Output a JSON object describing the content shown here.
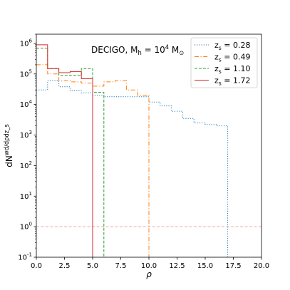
{
  "chart_data": {
    "type": "line",
    "drawstyle": "steps",
    "xlabel": "ρ",
    "ylabel": "dN^wd/dρdz_s",
    "annotation": "DECIGO, M_h = 10^4 M_⊙",
    "xlim": [
      0,
      20
    ],
    "ylim": [
      0.1,
      2000000
    ],
    "yscale": "log",
    "x_ticks": [
      0,
      2.5,
      5,
      7.5,
      10,
      12.5,
      15,
      17.5,
      20
    ],
    "x_tick_labels": [
      "0.0",
      "2.5",
      "5.0",
      "7.5",
      "10.0",
      "12.5",
      "15.0",
      "17.5",
      "20.0"
    ],
    "y_ticks": [
      0.1,
      1,
      10,
      100,
      1000,
      10000,
      100000,
      1000000
    ],
    "y_tick_labels": [
      "10^-1",
      "10^0",
      "10^1",
      "10^2",
      "10^3",
      "10^4",
      "10^5",
      "10^6"
    ],
    "reference_line": {
      "y": 1,
      "color": "#f4a6a6",
      "style": "dashed"
    },
    "legend": {
      "placement": "top-right"
    },
    "series": [
      {
        "name": "z_s = 0.28",
        "color": "#1f77b4",
        "linestyle": "dotted",
        "bin_edges": [
          0,
          1,
          2,
          3,
          4,
          5,
          6,
          7,
          8,
          9,
          10,
          11,
          12,
          13,
          14,
          15,
          16,
          17
        ],
        "values": [
          30000,
          60000,
          38000,
          28000,
          24000,
          20000,
          18000,
          18000,
          18000,
          18000,
          12000,
          9000,
          6000,
          3500,
          2500,
          2200,
          2000
        ]
      },
      {
        "name": "z_s = 0.49",
        "color": "#ff7f0e",
        "linestyle": "dashdot",
        "bin_edges": [
          0,
          1,
          2,
          3,
          4,
          5,
          6,
          7,
          8,
          9,
          10
        ],
        "values": [
          200000,
          100000,
          60000,
          55000,
          50000,
          40000,
          55000,
          60000,
          30000,
          20000
        ]
      },
      {
        "name": "z_s = 1.10",
        "color": "#2ca02c",
        "linestyle": "dashed",
        "bin_edges": [
          0,
          1,
          2,
          3,
          4,
          5,
          6
        ],
        "values": [
          700000,
          150000,
          90000,
          90000,
          150000,
          25000
        ]
      },
      {
        "name": "z_s = 1.72",
        "color": "#d62728",
        "linestyle": "solid",
        "bin_edges": [
          0,
          1,
          2,
          3,
          4,
          5
        ],
        "values": [
          900000,
          150000,
          110000,
          120000,
          70000
        ]
      }
    ]
  }
}
